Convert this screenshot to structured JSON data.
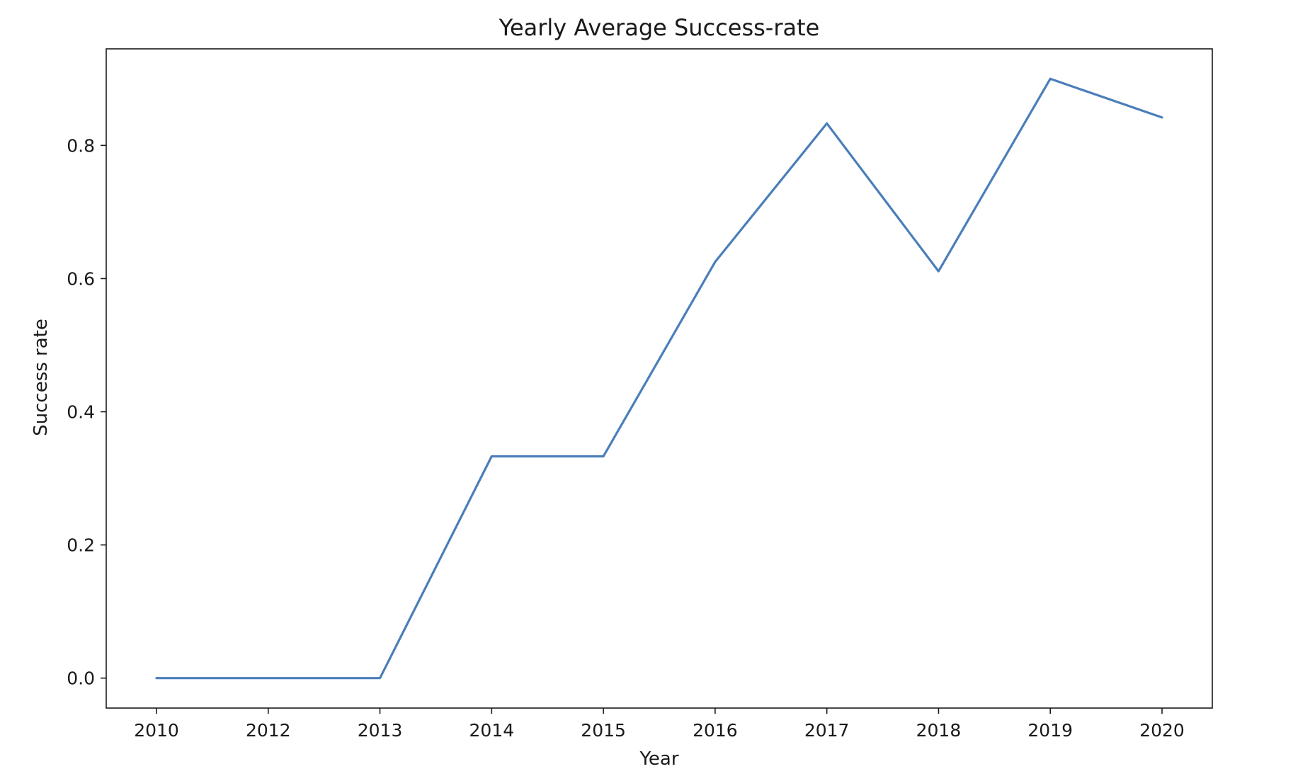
{
  "chart_data": {
    "type": "line",
    "title": "Yearly Average Success-rate",
    "xlabel": "Year",
    "ylabel": "Success rate",
    "categories": [
      "2010",
      "2012",
      "2013",
      "2014",
      "2015",
      "2016",
      "2017",
      "2018",
      "2019",
      "2020"
    ],
    "series": [
      {
        "values": [
          0.0,
          0.0,
          0.0,
          0.333,
          0.333,
          0.625,
          0.833,
          0.611,
          0.9,
          0.842
        ],
        "color": "#4a7eba"
      }
    ],
    "yticks": [
      "0.0",
      "0.2",
      "0.4",
      "0.6",
      "0.8"
    ],
    "ylim": [
      -0.045,
      0.945
    ],
    "grid": false,
    "legend": "none"
  }
}
